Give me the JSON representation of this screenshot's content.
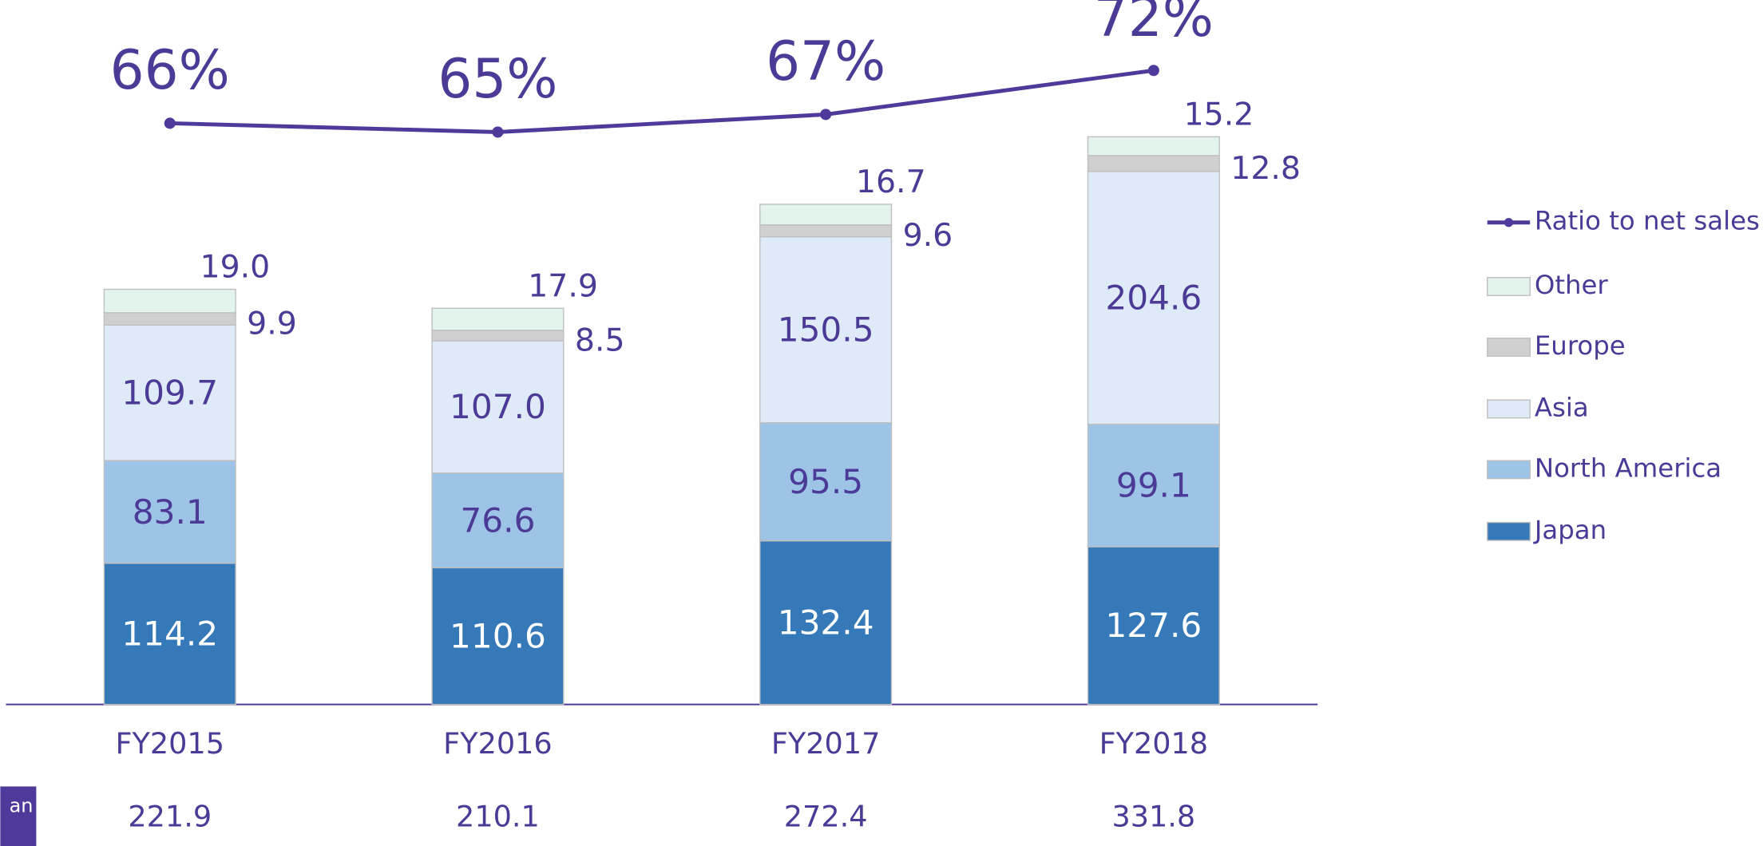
{
  "chart_data": {
    "type": "bar",
    "stacked": true,
    "categories": [
      "FY2015",
      "FY2016",
      "FY2017",
      "FY2018"
    ],
    "ylim": [
      0,
      570
    ],
    "y2lim": [
      0,
      80
    ],
    "series": [
      {
        "name": "Japan",
        "color": "#3579b9",
        "values": [
          114.2,
          110.6,
          132.4,
          127.6
        ],
        "value_labels": [
          "114.2",
          "110.6",
          "132.4",
          "127.6"
        ]
      },
      {
        "name": "North America",
        "color": "#9dc3e6",
        "values": [
          83.1,
          76.6,
          95.5,
          99.1
        ],
        "value_labels": [
          "83.1",
          "76.6",
          "95.5",
          "99.1"
        ]
      },
      {
        "name": "Asia",
        "color": "#deeaf7",
        "values": [
          109.7,
          107.0,
          150.5,
          204.6
        ],
        "value_labels": [
          "109.7",
          "107.0",
          "150.5",
          "204.6"
        ]
      },
      {
        "name": "Europe",
        "color": "#d0d0d0",
        "values": [
          9.9,
          8.5,
          9.6,
          12.8
        ],
        "value_labels": [
          "9.9",
          "8.5",
          "9.6",
          "12.8"
        ]
      },
      {
        "name": "Other",
        "color": "#e2f4ec",
        "values": [
          19.0,
          17.9,
          16.7,
          15.2
        ],
        "value_labels": [
          "19.0",
          "17.9",
          "16.7",
          "15.2"
        ]
      },
      {
        "name": "Ratio to net sales",
        "color": "#4f3a9b",
        "axis": "y2",
        "values": [
          66,
          65,
          67,
          72
        ],
        "value_labels": [
          "66%",
          "65%",
          "67%",
          "72%"
        ]
      }
    ],
    "bottom_row": {
      "label": "an",
      "values": [
        221.9,
        210.1,
        272.4,
        331.8
      ]
    }
  }
}
